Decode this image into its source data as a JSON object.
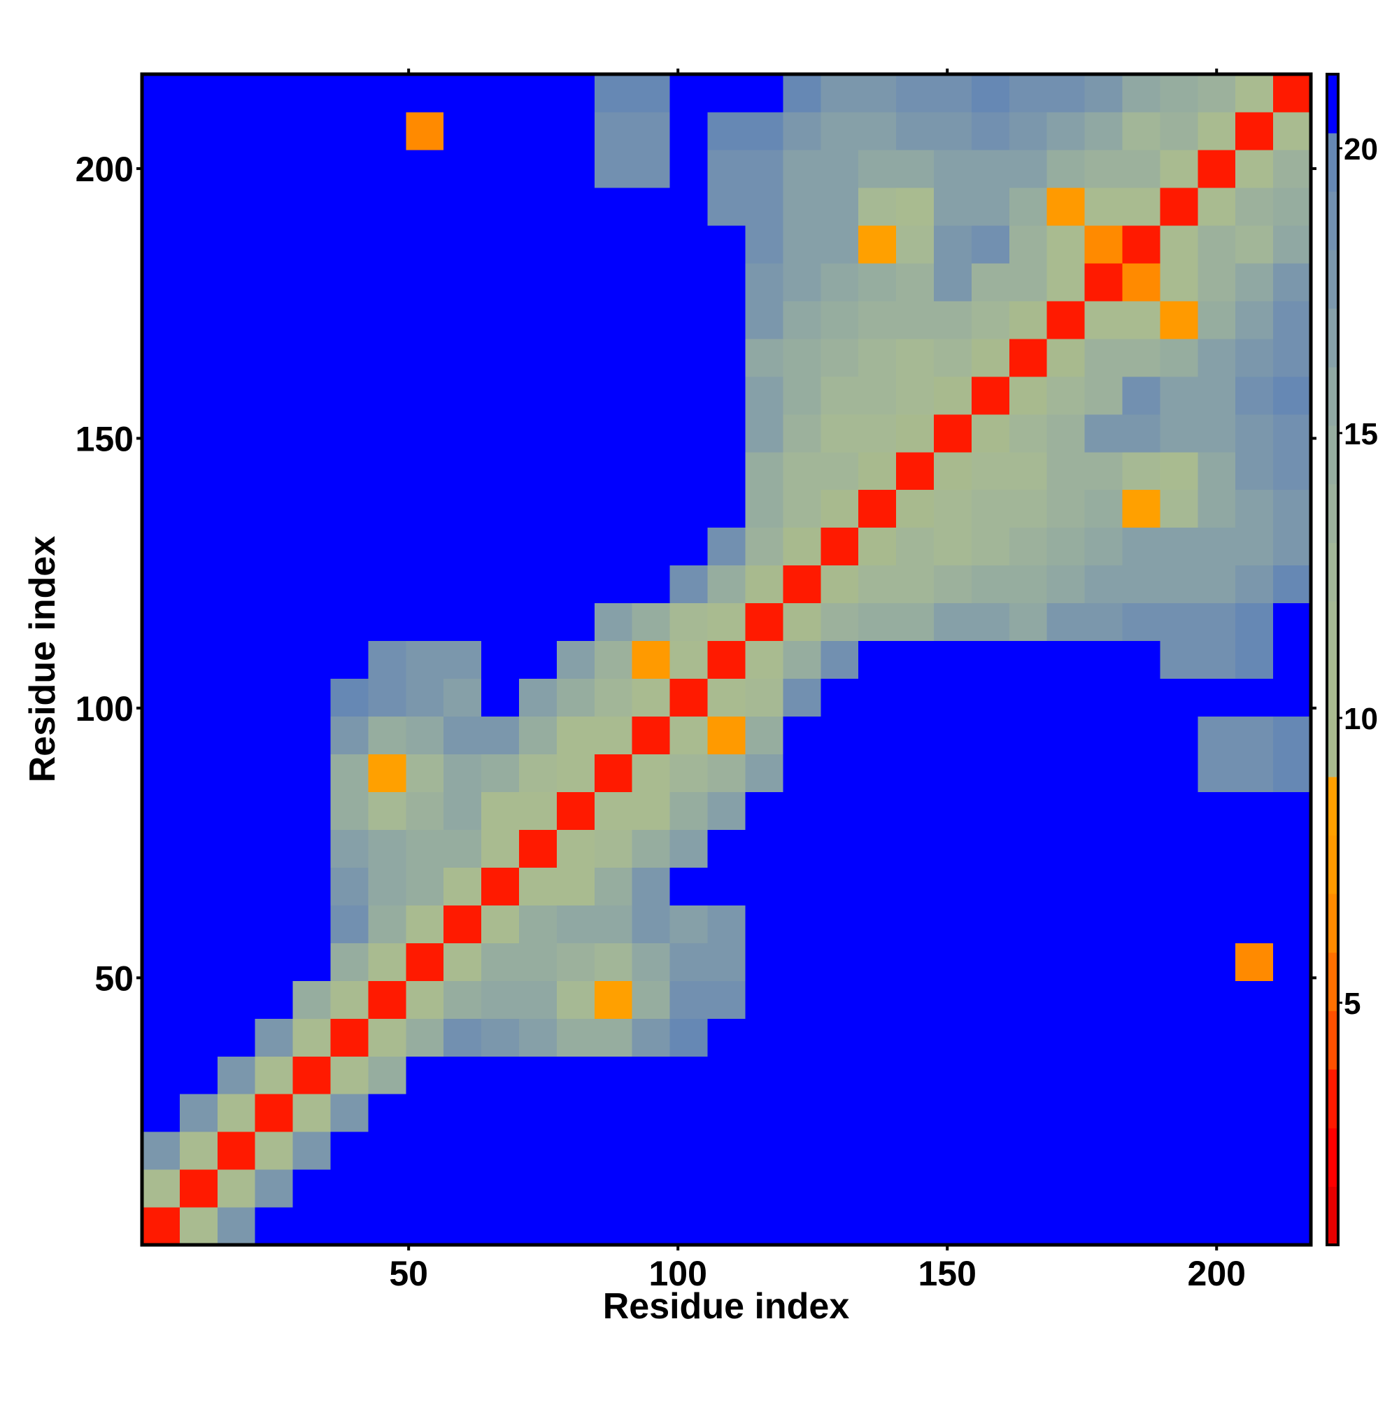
{
  "chart_data": {
    "type": "heatmap",
    "x_label": "Residue index",
    "y_label": "Residue index",
    "xlim": [
      0.5,
      217.5
    ],
    "ylim": [
      0.5,
      217.5
    ],
    "xticks": [
      50,
      100,
      150,
      200
    ],
    "yticks": [
      50,
      100,
      150,
      200
    ],
    "bins": [
      0.5,
      7.5,
      14.5,
      21.5,
      28.5,
      35.5,
      42.5,
      49.5,
      56.5,
      63.5,
      70.5,
      77.5,
      84.5,
      91.5,
      98.5,
      105.5,
      112.5,
      119.5,
      126.5,
      133.5,
      140.5,
      147.5,
      154.5,
      161.5,
      168.5,
      175.5,
      182.5,
      189.5,
      196.5,
      203.5,
      210.5,
      217.5
    ],
    "clim": [
      0.75,
      21.3
    ],
    "cticks": [
      5,
      10,
      15,
      20
    ],
    "colors": [
      "#e60000",
      "#ff0000",
      "#ff1a00",
      "#ff5000",
      "#ff7000",
      "#ff8a00",
      "#ff9a00",
      "#ffa000",
      "#a8ba8e",
      "#a9bb90",
      "#a6b994",
      "#a2b698",
      "#9cb19c",
      "#96ad9f",
      "#90a8a3",
      "#86a0a8",
      "#7b97ac",
      "#7290b0",
      "#6688b4",
      "#0000ff"
    ],
    "z": [
      [
        3,
        10,
        18,
        21,
        21,
        21,
        21,
        21,
        21,
        21,
        21,
        21,
        21,
        21,
        21,
        21,
        21,
        21,
        21,
        21,
        21,
        21,
        21,
        21,
        21,
        21,
        21,
        21,
        21,
        21,
        21
      ],
      [
        10,
        3,
        10,
        18,
        21,
        21,
        21,
        21,
        21,
        21,
        21,
        21,
        21,
        21,
        21,
        21,
        21,
        21,
        21,
        21,
        21,
        21,
        21,
        21,
        21,
        21,
        21,
        21,
        21,
        21,
        21
      ],
      [
        18,
        10,
        3,
        10,
        18,
        21,
        21,
        21,
        21,
        21,
        21,
        21,
        21,
        21,
        21,
        21,
        21,
        21,
        21,
        21,
        21,
        21,
        21,
        21,
        21,
        21,
        21,
        21,
        21,
        21,
        21
      ],
      [
        21,
        18,
        10,
        3,
        10,
        18,
        21,
        21,
        21,
        21,
        21,
        21,
        21,
        21,
        21,
        21,
        21,
        21,
        21,
        21,
        21,
        21,
        21,
        21,
        21,
        21,
        21,
        21,
        21,
        21,
        21
      ],
      [
        21,
        21,
        18,
        10,
        3,
        10,
        15,
        21,
        21,
        21,
        21,
        21,
        21,
        21,
        21,
        21,
        21,
        21,
        21,
        21,
        21,
        21,
        21,
        21,
        21,
        21,
        21,
        21,
        21,
        21,
        21
      ],
      [
        21,
        21,
        21,
        18,
        10,
        3,
        10,
        15,
        19,
        18,
        17,
        15,
        15,
        18,
        20,
        21,
        21,
        21,
        21,
        21,
        21,
        21,
        21,
        21,
        21,
        21,
        21,
        21,
        21,
        21,
        21
      ],
      [
        21,
        21,
        21,
        21,
        15,
        10,
        3,
        10,
        15,
        16,
        16,
        12,
        8,
        15,
        19,
        19,
        21,
        21,
        21,
        21,
        21,
        21,
        21,
        21,
        21,
        21,
        21,
        21,
        21,
        21,
        21
      ],
      [
        21,
        21,
        21,
        21,
        21,
        15,
        10,
        3,
        10,
        15,
        15,
        14,
        13,
        16,
        18,
        18,
        21,
        21,
        21,
        21,
        21,
        21,
        21,
        21,
        21,
        21,
        21,
        21,
        21,
        6,
        21
      ],
      [
        21,
        21,
        21,
        21,
        21,
        19,
        15,
        10,
        3,
        10,
        15,
        16,
        16,
        18,
        17,
        18,
        21,
        21,
        21,
        21,
        21,
        21,
        21,
        21,
        21,
        21,
        21,
        21,
        21,
        21,
        21
      ],
      [
        21,
        21,
        21,
        21,
        21,
        18,
        16,
        15,
        10,
        3,
        10,
        11,
        15,
        18,
        21,
        21,
        21,
        21,
        21,
        21,
        21,
        21,
        21,
        21,
        21,
        21,
        21,
        21,
        21,
        21,
        21
      ],
      [
        21,
        21,
        21,
        21,
        21,
        17,
        16,
        15,
        15,
        10,
        3,
        10,
        12,
        15,
        17,
        21,
        21,
        21,
        21,
        21,
        21,
        21,
        21,
        21,
        21,
        21,
        21,
        21,
        21,
        21,
        21
      ],
      [
        21,
        21,
        21,
        21,
        21,
        15,
        12,
        14,
        16,
        11,
        10,
        3,
        10,
        11,
        15,
        17,
        21,
        21,
        21,
        21,
        21,
        21,
        21,
        21,
        21,
        21,
        21,
        21,
        21,
        21,
        21
      ],
      [
        21,
        21,
        21,
        21,
        21,
        15,
        8,
        13,
        16,
        15,
        12,
        10,
        3,
        10,
        13,
        14,
        17,
        21,
        21,
        21,
        21,
        21,
        21,
        21,
        21,
        21,
        21,
        21,
        19,
        19,
        20
      ],
      [
        21,
        21,
        21,
        21,
        21,
        18,
        15,
        16,
        18,
        18,
        15,
        11,
        10,
        3,
        10,
        7,
        15,
        21,
        21,
        21,
        21,
        21,
        21,
        21,
        21,
        21,
        21,
        21,
        19,
        19,
        20
      ],
      [
        21,
        21,
        21,
        21,
        21,
        20,
        19,
        18,
        17,
        21,
        17,
        15,
        13,
        10,
        3,
        10,
        12,
        19,
        21,
        21,
        21,
        21,
        21,
        21,
        21,
        21,
        21,
        21,
        21,
        21,
        21
      ],
      [
        21,
        21,
        21,
        21,
        21,
        21,
        19,
        18,
        18,
        21,
        21,
        17,
        14,
        7,
        10,
        3,
        10,
        15,
        19,
        21,
        21,
        21,
        21,
        21,
        21,
        21,
        21,
        19,
        19,
        20,
        21
      ],
      [
        21,
        21,
        21,
        21,
        21,
        21,
        21,
        21,
        21,
        21,
        21,
        21,
        17,
        15,
        12,
        10,
        3,
        9,
        14,
        15,
        15,
        17,
        17,
        16,
        18,
        18,
        19,
        19,
        19,
        20,
        21
      ],
      [
        21,
        21,
        21,
        21,
        21,
        21,
        21,
        21,
        21,
        21,
        21,
        21,
        21,
        21,
        19,
        15,
        9,
        3,
        9,
        13,
        13,
        14,
        15,
        15,
        16,
        17,
        17,
        17,
        17,
        18,
        20
      ],
      [
        21,
        21,
        21,
        21,
        21,
        21,
        21,
        21,
        21,
        21,
        21,
        21,
        21,
        21,
        21,
        19,
        14,
        9,
        3,
        9,
        13,
        12,
        13,
        14,
        15,
        16,
        17,
        17,
        17,
        17,
        18
      ],
      [
        21,
        21,
        21,
        21,
        21,
        21,
        21,
        21,
        21,
        21,
        21,
        21,
        21,
        21,
        21,
        21,
        15,
        13,
        9,
        3,
        9,
        12,
        13,
        13,
        14,
        15,
        8,
        12,
        16,
        17,
        18
      ],
      [
        21,
        21,
        21,
        21,
        21,
        21,
        21,
        21,
        21,
        21,
        21,
        21,
        21,
        21,
        21,
        21,
        15,
        13,
        13,
        9,
        3,
        9,
        12,
        12,
        14,
        14,
        12,
        10,
        16,
        18,
        19
      ],
      [
        21,
        21,
        21,
        21,
        21,
        21,
        21,
        21,
        21,
        21,
        21,
        21,
        21,
        21,
        21,
        21,
        17,
        14,
        12,
        12,
        9,
        3,
        9,
        13,
        14,
        18,
        18,
        17,
        17,
        18,
        19
      ],
      [
        21,
        21,
        21,
        21,
        21,
        21,
        21,
        21,
        21,
        21,
        21,
        21,
        21,
        21,
        21,
        21,
        17,
        15,
        13,
        13,
        12,
        9,
        3,
        9,
        13,
        14,
        19,
        17,
        17,
        19,
        20
      ],
      [
        21,
        21,
        21,
        21,
        21,
        21,
        21,
        21,
        21,
        21,
        21,
        21,
        21,
        21,
        21,
        21,
        16,
        15,
        14,
        13,
        12,
        13,
        9,
        3,
        9,
        14,
        14,
        15,
        17,
        18,
        19
      ],
      [
        21,
        21,
        21,
        21,
        21,
        21,
        21,
        21,
        21,
        21,
        21,
        21,
        21,
        21,
        21,
        21,
        18,
        16,
        15,
        14,
        14,
        14,
        13,
        9,
        3,
        10,
        10,
        7,
        15,
        17,
        19
      ],
      [
        21,
        21,
        21,
        21,
        21,
        21,
        21,
        21,
        21,
        21,
        21,
        21,
        21,
        21,
        21,
        21,
        18,
        17,
        16,
        15,
        14,
        18,
        14,
        14,
        10,
        3,
        6,
        11,
        14,
        16,
        18
      ],
      [
        21,
        21,
        21,
        21,
        21,
        21,
        21,
        21,
        21,
        21,
        21,
        21,
        21,
        21,
        21,
        21,
        19,
        17,
        17,
        8,
        12,
        18,
        19,
        14,
        10,
        6,
        3,
        10,
        14,
        13,
        16
      ],
      [
        21,
        21,
        21,
        21,
        21,
        21,
        21,
        21,
        21,
        21,
        21,
        21,
        21,
        21,
        21,
        19,
        19,
        17,
        17,
        12,
        10,
        17,
        17,
        15,
        7,
        11,
        10,
        3,
        10,
        14,
        15
      ],
      [
        21,
        21,
        21,
        21,
        21,
        21,
        21,
        21,
        21,
        21,
        21,
        21,
        19,
        19,
        21,
        19,
        19,
        17,
        17,
        16,
        16,
        17,
        17,
        17,
        15,
        14,
        14,
        10,
        3,
        10,
        14
      ],
      [
        21,
        21,
        21,
        21,
        21,
        21,
        21,
        6,
        21,
        21,
        21,
        21,
        19,
        19,
        21,
        20,
        20,
        18,
        17,
        17,
        18,
        18,
        19,
        18,
        17,
        16,
        13,
        14,
        10,
        3,
        10
      ],
      [
        21,
        21,
        21,
        21,
        21,
        21,
        21,
        21,
        21,
        21,
        21,
        21,
        20,
        20,
        21,
        21,
        21,
        20,
        18,
        18,
        19,
        19,
        20,
        19,
        19,
        18,
        16,
        15,
        14,
        10,
        3
      ]
    ]
  }
}
